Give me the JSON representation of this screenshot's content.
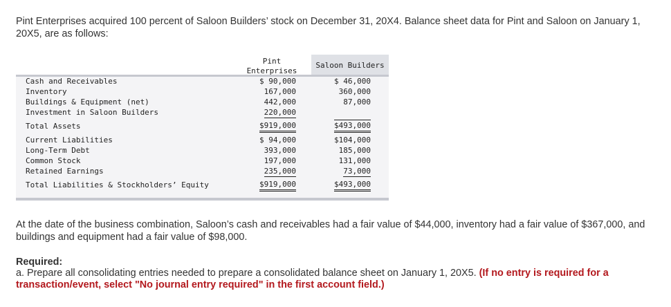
{
  "intro": "Pint Enterprises acquired 100 percent of Saloon Builders’ stock on December 31, 20X4. Balance sheet data for Pint and Saloon on January 1, 20X5, are as follows:",
  "table": {
    "col1_header_line1": "Pint",
    "col1_header_line2": "Enterprises",
    "col2_header": "Saloon Builders",
    "rows": [
      {
        "label": "Cash and Receivables",
        "pint": "$ 90,000",
        "saloon": "$ 46,000"
      },
      {
        "label": "Inventory",
        "pint": "167,000",
        "saloon": "360,000"
      },
      {
        "label": "Buildings & Equipment (net)",
        "pint": "442,000",
        "saloon": "87,000"
      },
      {
        "label": "Investment in Saloon Builders",
        "pint": "220,000",
        "saloon": ""
      },
      {
        "label": "Total Assets",
        "pint": "$919,000",
        "saloon": "$493,000"
      },
      {
        "label": "Current Liabilities",
        "pint": "$ 94,000",
        "saloon": "$104,000"
      },
      {
        "label": "Long-Term Debt",
        "pint": "393,000",
        "saloon": "185,000"
      },
      {
        "label": "Common Stock",
        "pint": "197,000",
        "saloon": "131,000"
      },
      {
        "label": "Retained Earnings",
        "pint": "235,000",
        "saloon": "73,000"
      },
      {
        "label": "Total Liabilities & Stockholders’ Equity",
        "pint": "$919,000",
        "saloon": "$493,000"
      }
    ]
  },
  "paragraph2": "At the date of the business combination, Saloon’s cash and receivables had a fair value of $44,000, inventory had a fair value of $367,000, and buildings and equipment had a fair value of $98,000.",
  "required": {
    "title": "Required:",
    "part_a": "a. Prepare all consolidating entries needed to prepare a consolidated balance sheet on January 1, 20X5. ",
    "part_a_note": "(If no entry is required for a transaction/event, select \"No journal entry required\" in the first account field.)"
  }
}
